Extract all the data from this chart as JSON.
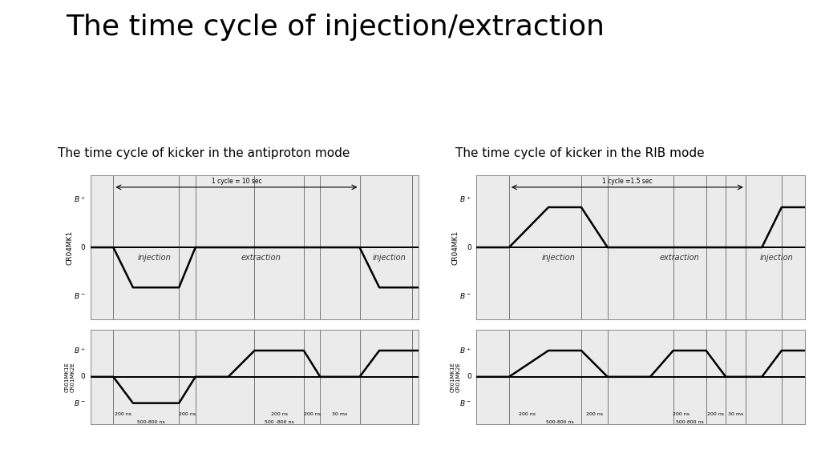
{
  "title": "The time cycle of injection/extraction",
  "title_fontsize": 26,
  "bg_color": "#ffffff",
  "panel_bg": "#ebebeb",
  "left_subtitle": "The time cycle of kicker in the antiproton mode",
  "right_subtitle": "The time cycle of kicker in the RIB mode",
  "subtitle_fontsize": 11,
  "left_cycle_label": "1 cycle = 10 sec",
  "right_cycle_label": "1 cycle =1.5 sec",
  "ylabel_top_left": "CR04MK1",
  "ylabel_bot_left": "CR01MK1E\nCR01MK2E",
  "ylabel_top_right": "CR04MK1",
  "ylabel_bot_right": "CR01MK1E\nCR01MK2E",
  "inj_label": "injection",
  "ext_label": "extraction",
  "line_color": "#000000",
  "lw": 1.8
}
